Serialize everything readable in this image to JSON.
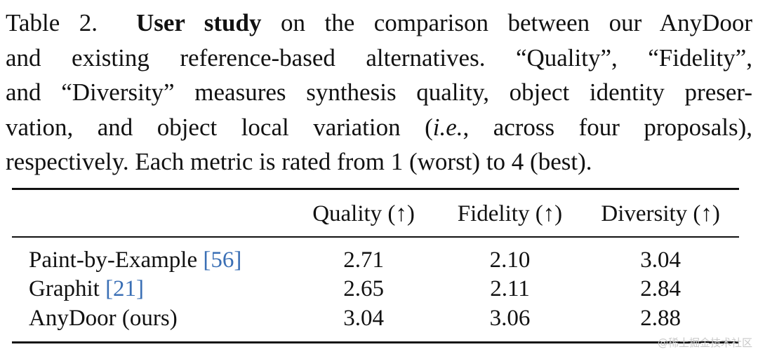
{
  "caption": {
    "label": "Table 2.",
    "bold_title": "User study",
    "line1_rest": "on the comparison between our AnyDoor",
    "line2": "and existing reference-based alternatives.  “Quality”, “Fidelity”,",
    "line3": "and “Diversity” measures synthesis quality, object identity preser-",
    "line4_start": "vation, and object local variation (",
    "line4_italic": "i.e.",
    "line4_end": ", across four proposals),",
    "line5": "respectively. Each metric is rated from 1 (worst) to 4 (best)."
  },
  "table": {
    "headers": [
      "",
      "Quality (↑)",
      "Fidelity (↑)",
      "Diversity (↑)"
    ],
    "rows": [
      {
        "method": "Paint-by-Example",
        "cite": "[56]",
        "quality": "2.71",
        "fidelity": "2.10",
        "diversity": "3.04"
      },
      {
        "method": "Graphit",
        "cite": "[21]",
        "quality": "2.65",
        "fidelity": "2.11",
        "diversity": "2.84"
      },
      {
        "method": "AnyDoor (ours)",
        "cite": "",
        "quality": "3.04",
        "fidelity": "3.06",
        "diversity": "2.88"
      }
    ]
  },
  "watermark": "@稀土掘金技术社区"
}
